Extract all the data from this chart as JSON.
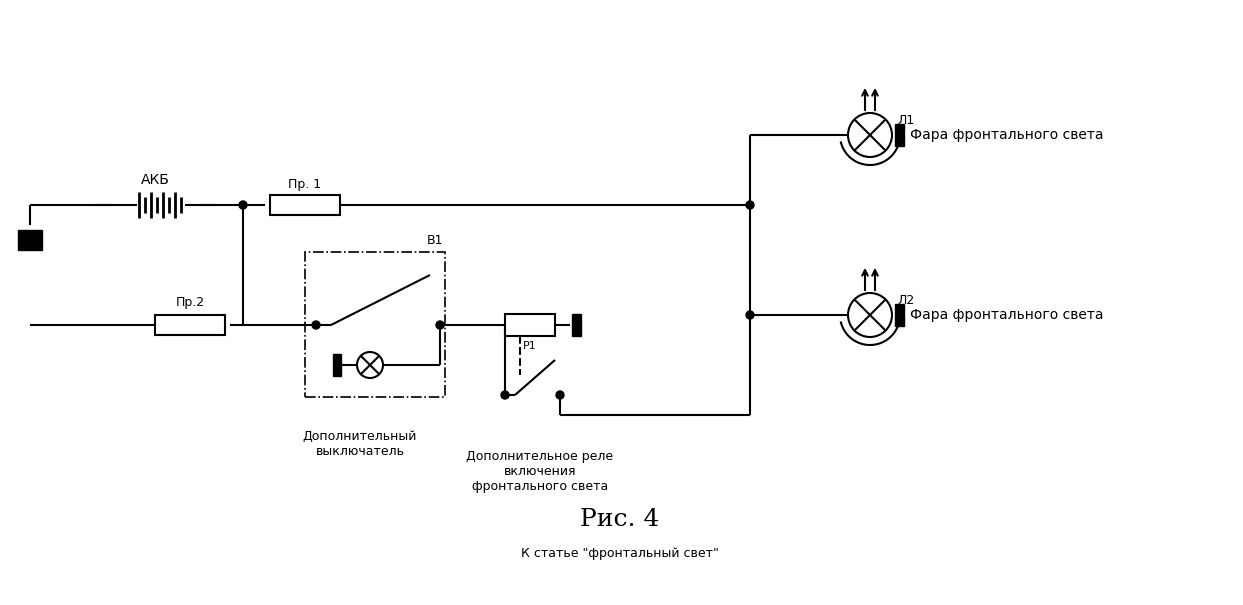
{
  "bg_color": "#ffffff",
  "line_color": "#000000",
  "lw": 1.5,
  "fig_width": 12.43,
  "fig_height": 6.05,
  "dpi": 100,
  "title": "Рис. 4",
  "subtitle": "К статье \"фронтальный свет\"",
  "label_akb": "АКБ",
  "label_pr1": "Пр. 1",
  "label_pr2": "Пр.2",
  "label_v1": "В1",
  "label_r1": "Р1",
  "label_l1": "Л1",
  "label_l2": "Л2",
  "label_switch": "Дополнительный\nвыключатель",
  "label_relay": "Дополнительное реле\nвключения\nфронтального света",
  "label_fara1": "Фара фронтального света",
  "label_fara2": "Фара фронтального света"
}
